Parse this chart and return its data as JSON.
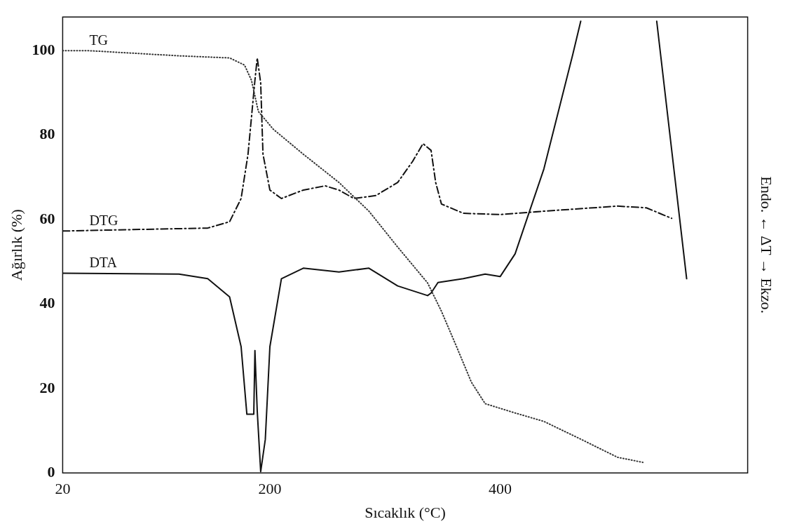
{
  "chart_data": {
    "type": "line",
    "xlabel": "Sıcaklık (°C)",
    "ylabel": "Ağırlık (%)",
    "y2label": "Endo. ← ΔT → Ekzo.",
    "xlim": [
      20,
      615
    ],
    "xticks": [
      20,
      200,
      400
    ],
    "ylim": [
      0,
      108
    ],
    "yticks": [
      0,
      20,
      40,
      60,
      80,
      100
    ],
    "grid": false,
    "legend": false,
    "marker": "none",
    "series": [
      {
        "name": "TG",
        "color": "#333333",
        "line_style": "dotted",
        "x": [
          20,
          44,
          121,
          165,
          178,
          184,
          190,
          203,
          229,
          260,
          286,
          311,
          337,
          349,
          362,
          375,
          387,
          413,
          438,
          470,
          502,
          524
        ],
        "values": [
          100,
          100,
          98.8,
          98.3,
          96.6,
          93,
          85.6,
          81.4,
          75.5,
          68.8,
          62,
          53.5,
          45,
          38.3,
          30,
          21.5,
          16.4,
          14.2,
          12.2,
          8,
          3.7,
          2.5
        ]
      },
      {
        "name": "DTG",
        "color": "#111111",
        "line_style": "dashed",
        "x": [
          20,
          146,
          165,
          175,
          181,
          187,
          189,
          192,
          194,
          200,
          210,
          229,
          248,
          260,
          273,
          292,
          311,
          324,
          333,
          340,
          344,
          349,
          368,
          400,
          438,
          502,
          527,
          549
        ],
        "values": [
          57.3,
          58,
          59.5,
          65,
          75.5,
          93,
          98.3,
          92.4,
          75.5,
          67,
          65,
          67,
          68,
          67,
          65,
          65.7,
          68.8,
          73.8,
          78,
          76.4,
          68.8,
          63.7,
          61.5,
          61.2,
          62,
          63.2,
          62.8,
          60.3
        ]
      },
      {
        "name": "DTA",
        "color": "#111111",
        "line_style": "solid",
        "x": [
          20,
          121,
          146,
          165,
          175,
          180,
          186,
          187,
          189,
          192,
          196,
          200,
          210,
          229,
          260,
          286,
          311,
          337,
          340,
          346,
          368,
          387,
          400,
          413,
          438,
          463,
          470,
          500,
          536,
          562
        ],
        "values": [
          47.3,
          47.1,
          46,
          41.7,
          29.9,
          13.9,
          13.9,
          29,
          14.7,
          0.3,
          7.9,
          29.9,
          46,
          48.5,
          47.6,
          48.5,
          44.3,
          42,
          42.6,
          45.1,
          46,
          47.1,
          46.5,
          51.9,
          72,
          99,
          107,
          null,
          107,
          46
        ]
      }
    ]
  }
}
